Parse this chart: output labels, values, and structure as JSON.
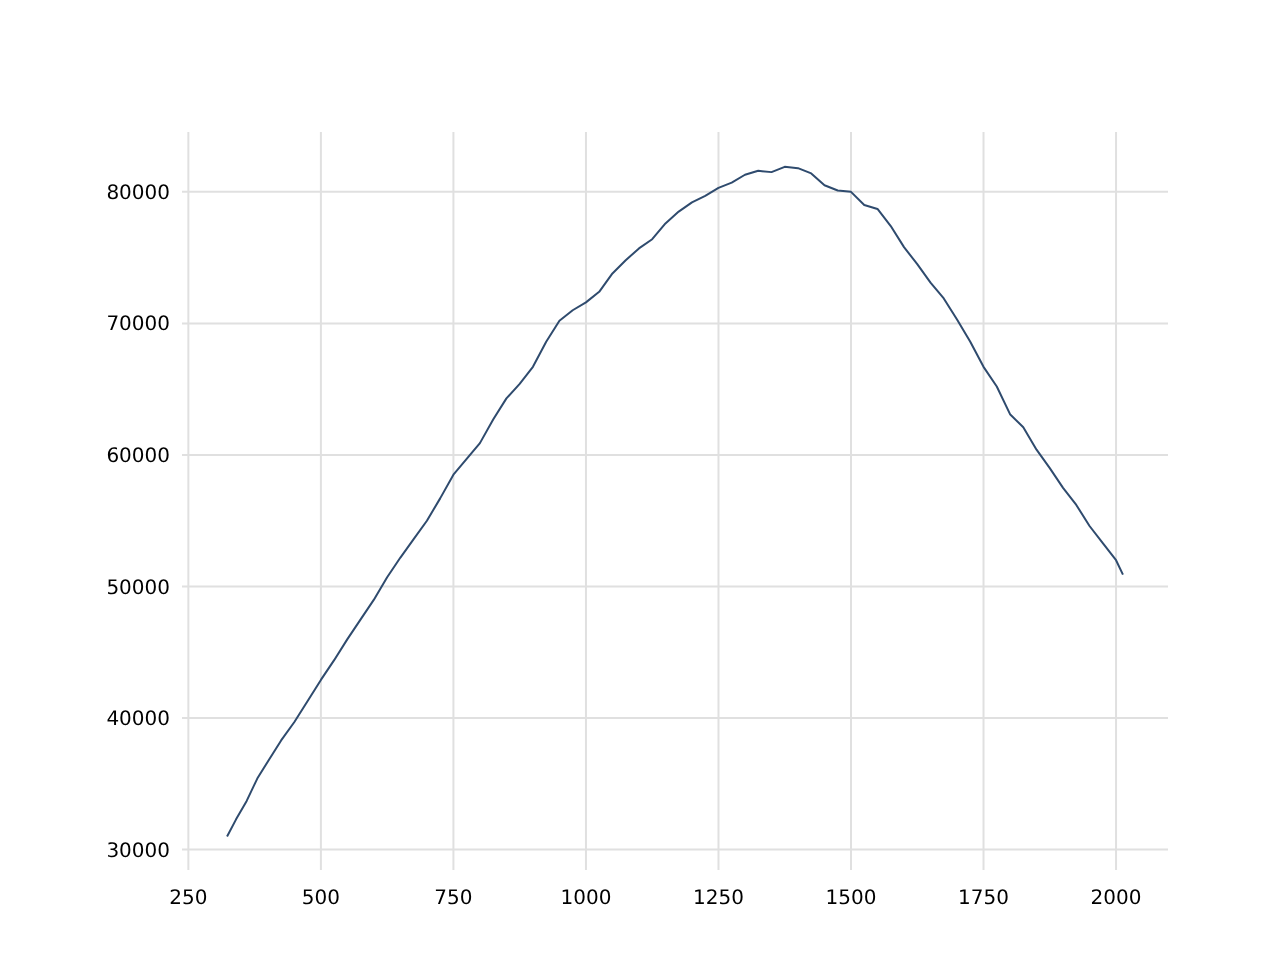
{
  "chart_data": {
    "type": "line",
    "x": [
      323,
      340,
      360,
      380,
      400,
      425,
      450,
      475,
      500,
      525,
      550,
      575,
      600,
      625,
      650,
      675,
      700,
      725,
      750,
      775,
      800,
      825,
      850,
      875,
      900,
      925,
      950,
      975,
      1000,
      1025,
      1050,
      1075,
      1100,
      1125,
      1150,
      1175,
      1200,
      1225,
      1250,
      1275,
      1300,
      1325,
      1350,
      1375,
      1400,
      1425,
      1450,
      1475,
      1500,
      1525,
      1550,
      1575,
      1600,
      1625,
      1650,
      1675,
      1700,
      1725,
      1750,
      1775,
      1800,
      1825,
      1850,
      1875,
      1900,
      1925,
      1950,
      1975,
      2000,
      2013
    ],
    "series": [
      {
        "color": "#2f4b6e",
        "values": [
          31000,
          32300,
          33700,
          35400,
          36700,
          38300,
          39700,
          41300,
          42900,
          44400,
          46000,
          47500,
          49000,
          50700,
          52200,
          53600,
          55000,
          56700,
          58500,
          59700,
          60900,
          62700,
          64300,
          65400,
          66700,
          68600,
          70200,
          71000,
          71600,
          72400,
          73800,
          74800,
          75700,
          76400,
          77600,
          78500,
          79200,
          79700,
          80300,
          80700,
          81300,
          81600,
          81500,
          81900,
          81800,
          81400,
          80500,
          80100,
          80000,
          79000,
          78700,
          77400,
          75800,
          74500,
          73100,
          71900,
          70300,
          68600,
          66700,
          65200,
          63100,
          62100,
          60400,
          59000,
          57500,
          56200,
          54600,
          53300,
          52000,
          50900
        ]
      }
    ],
    "xlim": [
      238,
      2098
    ],
    "ylim": [
      28450,
      84550
    ],
    "xticks": [
      250,
      500,
      750,
      1000,
      1250,
      1500,
      1750,
      2000
    ],
    "yticks": [
      30000,
      40000,
      50000,
      60000,
      70000,
      80000
    ],
    "grid": true,
    "marker": "none",
    "line_style": "solid"
  }
}
